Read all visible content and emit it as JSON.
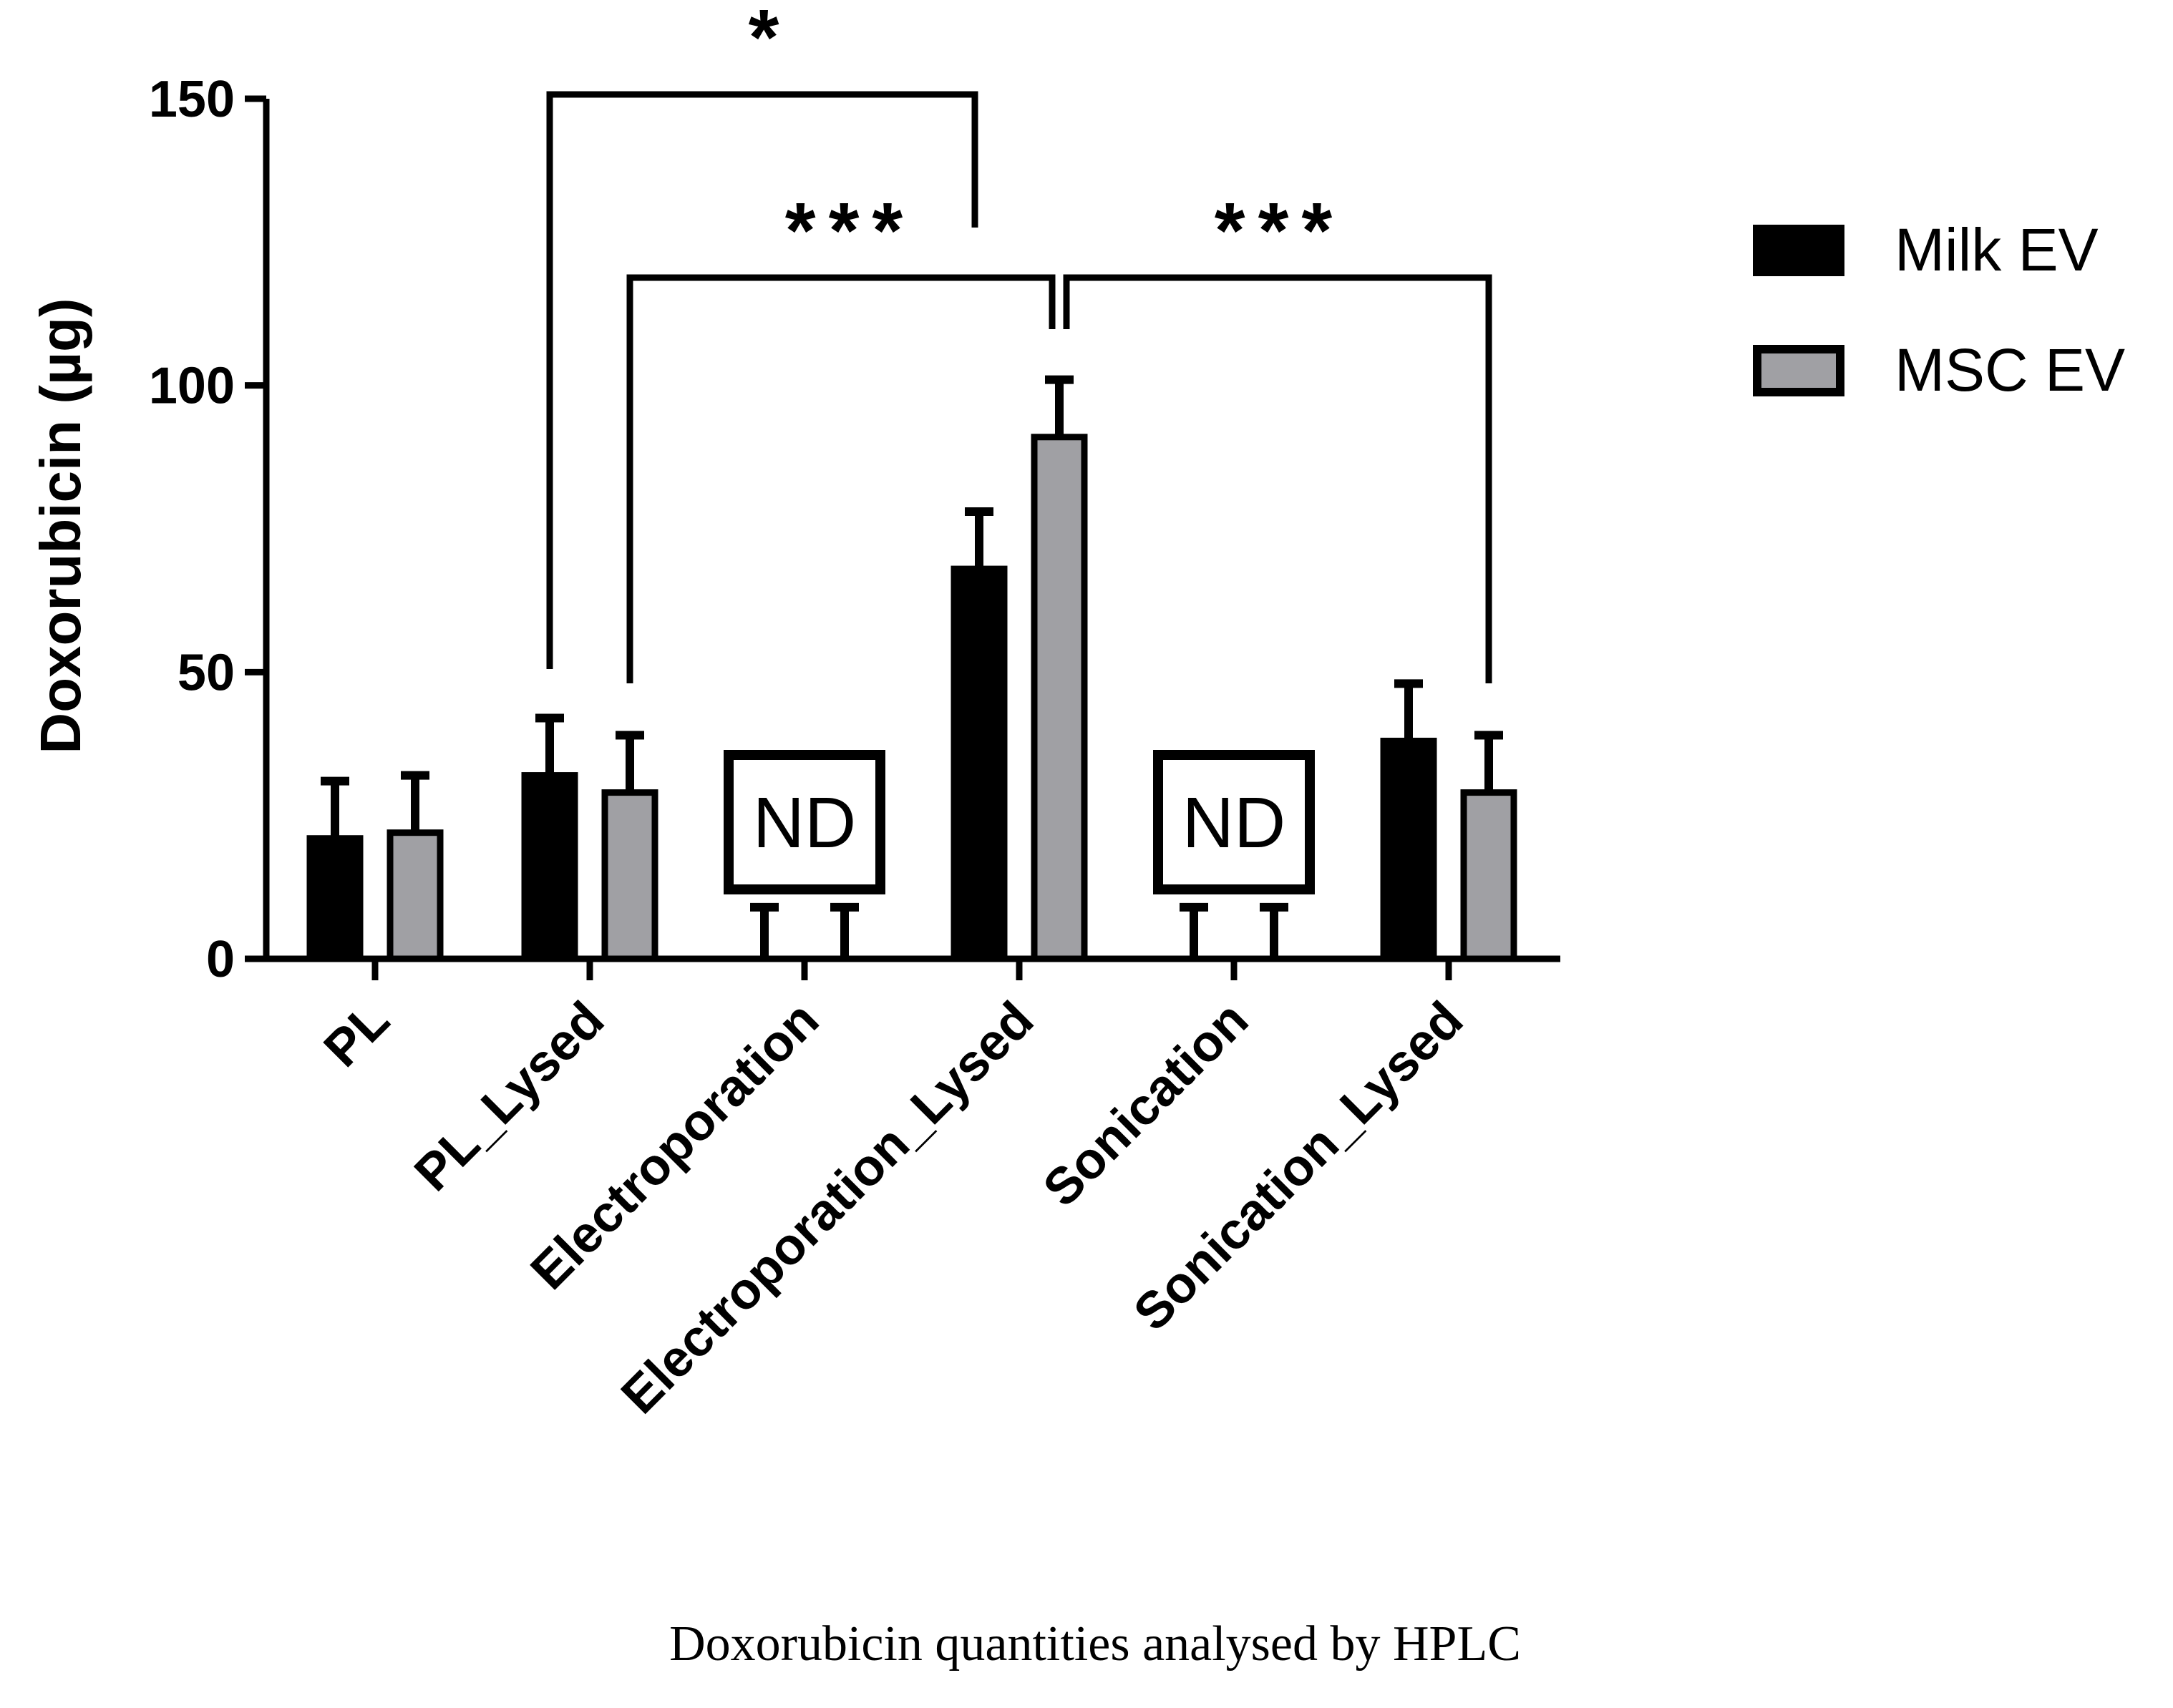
{
  "chart_data": {
    "type": "bar",
    "title": "",
    "caption": "Doxorubicin quantities analysed by HPLC",
    "ylabel": "Doxorubicin (µg)",
    "xlabel": "",
    "ylim": [
      0,
      150
    ],
    "yticks": [
      0,
      50,
      100,
      150
    ],
    "grid": false,
    "legend_position": "top-right",
    "categories": [
      "PL",
      "PL_Lysed",
      "Electroporation",
      "Electroporation_Lysed",
      "Sonication",
      "Sonication_Lysed"
    ],
    "series": [
      {
        "name": "Milk EV",
        "color": "#000000",
        "values": [
          21,
          32,
          0,
          68,
          0,
          38
        ],
        "errors": [
          10,
          10,
          9,
          10,
          9,
          10
        ]
      },
      {
        "name": "MSC EV",
        "color": "#a0a0a4",
        "values": [
          22,
          29,
          0,
          91,
          0,
          29
        ],
        "errors": [
          10,
          10,
          9,
          10,
          9,
          10
        ]
      }
    ],
    "not_detected": [
      {
        "category": "Electroporation",
        "label": "ND"
      },
      {
        "category": "Sonication",
        "label": "ND"
      }
    ],
    "significance": [
      {
        "from": "PL_Lysed",
        "from_series": "Milk EV",
        "to": "Electroporation_Lysed",
        "to_series": "Milk EV",
        "label": "*"
      },
      {
        "from": "PL_Lysed",
        "from_series": "MSC EV",
        "to": "Electroporation_Lysed",
        "to_series": "MSC EV",
        "label": "***"
      },
      {
        "from": "Electroporation_Lysed",
        "from_series": "MSC EV",
        "to": "Sonication_Lysed",
        "to_series": "MSC EV",
        "label": "***"
      }
    ]
  }
}
